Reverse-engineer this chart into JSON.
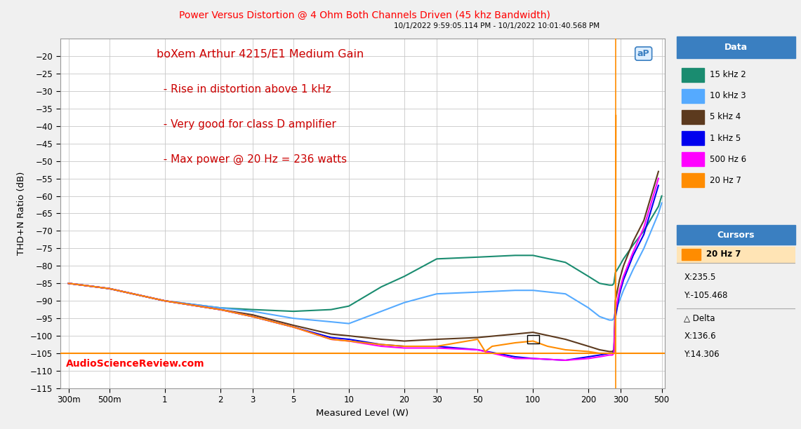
{
  "title": "Power Versus Distortion @ 4 Ohm Both Channels Driven (45 khz Bandwidth)",
  "subtitle": "10/1/2022 9:59:05.114 PM - 10/1/2022 10:01:40.568 PM",
  "xlabel": "Measured Level (W)",
  "ylabel": "THD+N Ratio (dB)",
  "annotation_line1": "boXem Arthur 4215/E1 Medium Gain",
  "annotation_line2": "  - Rise in distortion above 1 kHz",
  "annotation_line3": "  - Very good for class D amplifier",
  "annotation_line4": "  - Max power @ 20 Hz = 236 watts",
  "watermark": "AudioScienceReview.com",
  "title_color": "#FF0000",
  "annotation_color": "#CC0000",
  "watermark_color": "#FF0000",
  "background_color": "#F0F0F0",
  "panel_bg": "#FFFFFF",
  "grid_color": "#C8C8C8",
  "ylim": [
    -115,
    -15
  ],
  "yticks": [
    -115,
    -110,
    -105,
    -100,
    -95,
    -90,
    -85,
    -80,
    -75,
    -70,
    -65,
    -60,
    -55,
    -50,
    -45,
    -40,
    -35,
    -30,
    -25,
    -20
  ],
  "xtick_labels": [
    "300m",
    "500m",
    "1",
    "2",
    "3",
    "5",
    "10",
    "20",
    "30",
    "50",
    "100",
    "200",
    "300",
    "500"
  ],
  "xtick_values": [
    0.3,
    0.5,
    1,
    2,
    3,
    5,
    10,
    20,
    30,
    50,
    100,
    200,
    300,
    500
  ],
  "vertical_line_x": 280,
  "horizontal_line_y": -105,
  "legend_header_color": "#3A7FC1",
  "cursor_label": "20 Hz 7",
  "cursor_x": "X:235.5",
  "cursor_y": "Y:-105.468",
  "delta_x": "X:136.6",
  "delta_y": "Y:14.306",
  "series": [
    {
      "label": "15 kHz 2",
      "color": "#1A8C70",
      "x": [
        0.3,
        0.5,
        1,
        2,
        3,
        5,
        8,
        10,
        15,
        20,
        30,
        50,
        80,
        100,
        150,
        200,
        230,
        260,
        270,
        275,
        280,
        295,
        310,
        350,
        400,
        480,
        500
      ],
      "y": [
        -85,
        -86.5,
        -90,
        -92,
        -92.5,
        -93,
        -92.5,
        -91.5,
        -86,
        -83,
        -78,
        -77.5,
        -77,
        -77,
        -79,
        -83,
        -85,
        -85.5,
        -85.5,
        -85,
        -82,
        -80,
        -78,
        -74,
        -70,
        -63,
        -60
      ]
    },
    {
      "label": "10 kHz 3",
      "color": "#55AAFF",
      "x": [
        0.3,
        0.5,
        1,
        2,
        3,
        5,
        8,
        10,
        15,
        20,
        30,
        50,
        80,
        100,
        150,
        200,
        230,
        260,
        270,
        275,
        280,
        295,
        310,
        350,
        400,
        480,
        500
      ],
      "y": [
        -85,
        -86.5,
        -90,
        -92,
        -93,
        -95,
        -96,
        -96.5,
        -93,
        -90.5,
        -88,
        -87.5,
        -87,
        -87,
        -88,
        -92,
        -94.5,
        -95.5,
        -95.5,
        -95,
        -93,
        -90,
        -87,
        -81,
        -75,
        -65,
        -62
      ]
    },
    {
      "label": "5 kHz 4",
      "color": "#5C3A1E",
      "x": [
        0.3,
        0.5,
        1,
        2,
        3,
        5,
        8,
        10,
        15,
        20,
        30,
        50,
        80,
        100,
        150,
        200,
        230,
        260,
        270,
        275,
        280,
        295,
        310,
        350,
        400,
        480
      ],
      "y": [
        -85,
        -86.5,
        -90,
        -92.5,
        -94,
        -97,
        -99.5,
        -100,
        -101,
        -101.5,
        -101,
        -100.5,
        -99.5,
        -99,
        -101,
        -103,
        -104,
        -104.5,
        -104.5,
        -104,
        -90,
        -84,
        -80,
        -73,
        -67,
        -53
      ]
    },
    {
      "label": "1 kHz 5",
      "color": "#0000EE",
      "x": [
        0.3,
        0.5,
        1,
        2,
        3,
        5,
        8,
        10,
        15,
        20,
        30,
        50,
        80,
        100,
        150,
        200,
        230,
        260,
        270,
        275,
        280,
        295,
        310,
        350,
        400,
        480
      ],
      "y": [
        -85,
        -86.5,
        -90,
        -92.5,
        -94.5,
        -97.5,
        -100.5,
        -101,
        -102.5,
        -103,
        -103,
        -104,
        -106,
        -106.5,
        -107,
        -106,
        -105.5,
        -105,
        -105,
        -104.5,
        -95,
        -88,
        -84,
        -77,
        -71,
        -57
      ]
    },
    {
      "label": "500 Hz 6",
      "color": "#FF00FF",
      "x": [
        0.3,
        0.5,
        1,
        2,
        3,
        5,
        8,
        10,
        15,
        20,
        30,
        50,
        80,
        100,
        150,
        200,
        230,
        260,
        270,
        275,
        280,
        295,
        310,
        350,
        400,
        480
      ],
      "y": [
        -85,
        -86.5,
        -90,
        -92.5,
        -94.5,
        -97.5,
        -101,
        -101.5,
        -103,
        -103.5,
        -103.5,
        -104,
        -106.5,
        -106.5,
        -107,
        -106.5,
        -106,
        -105.5,
        -105.5,
        -105,
        -93,
        -87,
        -83,
        -76,
        -69,
        -55
      ]
    },
    {
      "label": "20 Hz 7",
      "color": "#FF8C00",
      "x": [
        0.3,
        0.5,
        1,
        2,
        3,
        5,
        8,
        10,
        15,
        20,
        30,
        50,
        55,
        60,
        80,
        100,
        120,
        150,
        200,
        230,
        260,
        270,
        275,
        280,
        282
      ],
      "y": [
        -85,
        -86.5,
        -90,
        -92.5,
        -94.5,
        -97.5,
        -101,
        -101.5,
        -102.5,
        -103,
        -103,
        -101,
        -104.5,
        -103,
        -102,
        -101.5,
        -103,
        -104,
        -104.5,
        -105,
        -105,
        -105,
        -105,
        -105,
        -37
      ]
    }
  ]
}
